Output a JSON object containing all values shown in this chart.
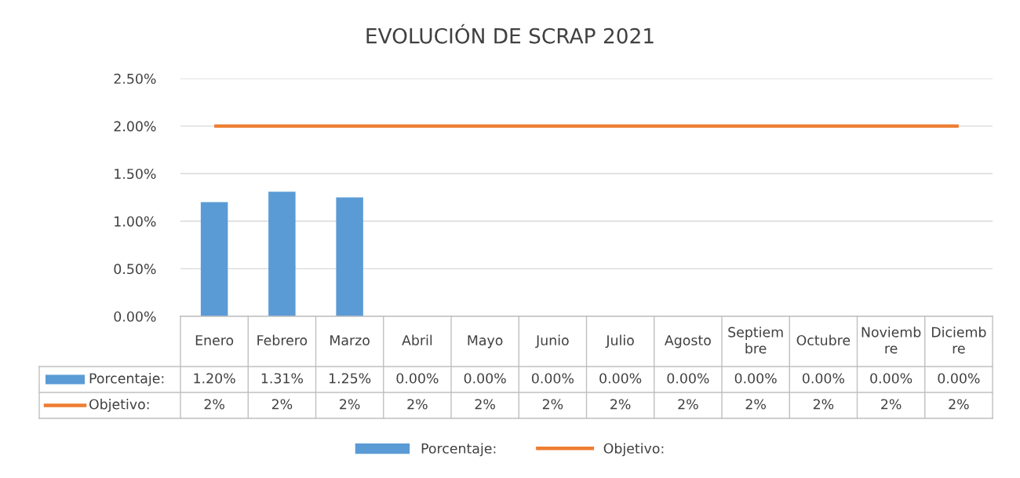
{
  "chart_data": {
    "type": "bar",
    "title": "EVOLUCIÓN DE SCRAP 2021",
    "categories": [
      "Enero",
      "Febrero",
      "Marzo",
      "Abril",
      "Mayo",
      "Junio",
      "Julio",
      "Agosto",
      "Septiembre",
      "Octubre",
      "Noviembre",
      "Diciembre"
    ],
    "series": [
      {
        "name": "Porcentaje:",
        "color": "#5b9bd5",
        "values": [
          1.2,
          1.31,
          1.25,
          0,
          0,
          0,
          0,
          0,
          0,
          0,
          0,
          0
        ],
        "value_labels": [
          "1.20%",
          "1.31%",
          "1.25%",
          "0.00%",
          "0.00%",
          "0.00%",
          "0.00%",
          "0.00%",
          "0.00%",
          "0.00%",
          "0.00%",
          "0.00%"
        ]
      },
      {
        "name": "Objetivo:",
        "type": "line",
        "color": "#ed7d31",
        "values": [
          2,
          2,
          2,
          2,
          2,
          2,
          2,
          2,
          2,
          2,
          2,
          2
        ],
        "value_labels": [
          "2%",
          "2%",
          "2%",
          "2%",
          "2%",
          "2%",
          "2%",
          "2%",
          "2%",
          "2%",
          "2%",
          "2%"
        ]
      }
    ],
    "ylim": [
      0,
      2.5
    ],
    "yticks": [
      {
        "value": 0,
        "label": "0.00%"
      },
      {
        "value": 0.5,
        "label": "0.50%"
      },
      {
        "value": 1.0,
        "label": "1.00%"
      },
      {
        "value": 1.5,
        "label": "1.50%"
      },
      {
        "value": 2.0,
        "label": "2.00%"
      },
      {
        "value": 2.5,
        "label": "2.50%"
      }
    ],
    "grid": "y",
    "legend": "bottom"
  }
}
